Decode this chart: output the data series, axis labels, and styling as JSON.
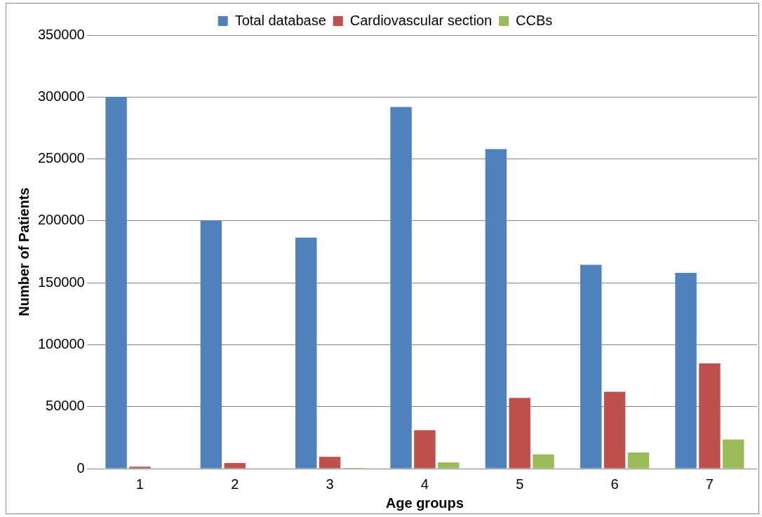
{
  "chart_data": {
    "type": "bar",
    "xlabel": "Age groups",
    "ylabel": "Number of Patients",
    "categories": [
      "1",
      "2",
      "3",
      "4",
      "5",
      "6",
      "7"
    ],
    "series": [
      {
        "name": "Total database",
        "color": "#4f81bd",
        "values": [
          300000,
          200000,
          186500,
          292000,
          258000,
          164500,
          158000
        ]
      },
      {
        "name": "Cardiovascular section",
        "color": "#c0504d",
        "values": [
          1500,
          4500,
          9500,
          31000,
          57000,
          62000,
          85000
        ]
      },
      {
        "name": "CCBs",
        "color": "#9bbb59",
        "values": [
          300,
          300,
          600,
          5000,
          11500,
          13000,
          23500
        ]
      }
    ],
    "ylim": [
      0,
      350000
    ],
    "yticks": [
      0,
      50000,
      100000,
      150000,
      200000,
      250000,
      300000,
      350000
    ],
    "grid": "y",
    "legend": "top"
  }
}
